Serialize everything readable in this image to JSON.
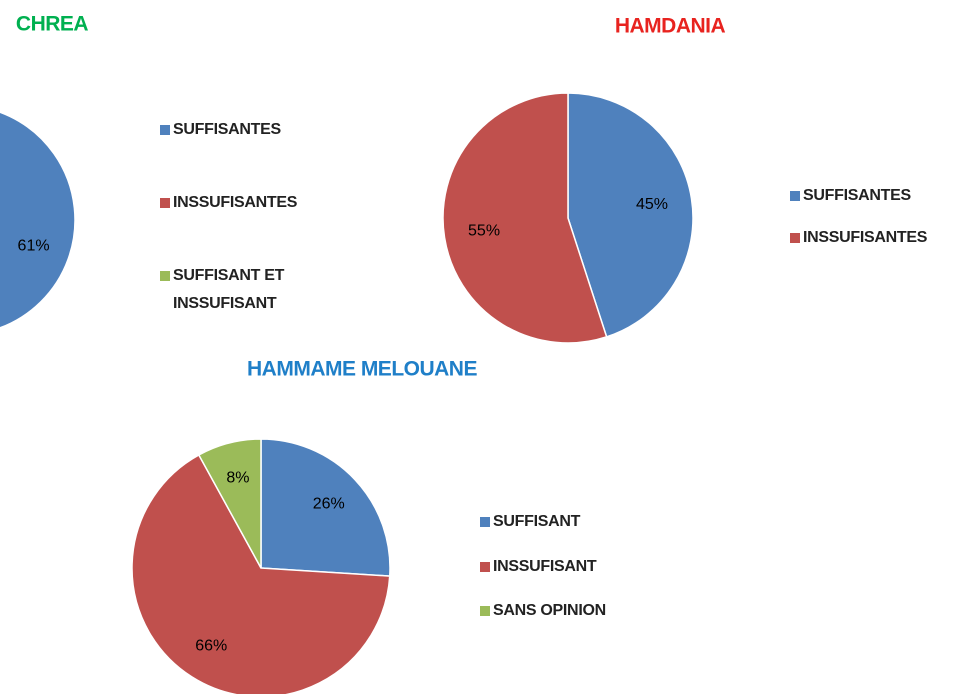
{
  "chart_data": [
    {
      "type": "pie",
      "title": "CHREA",
      "categories": [
        "SUFFISANTES",
        "INSSUFISANTES",
        "SUFFISANT ET INSSUFISANT"
      ],
      "values": [
        61,
        null,
        null
      ],
      "value_labels": [
        "61%",
        null,
        null
      ],
      "colors": [
        "#4f81bd",
        "#c0504d",
        "#9bbb59"
      ]
    },
    {
      "type": "pie",
      "title": "HAMDANIA",
      "categories": [
        "SUFFISANTES",
        "INSSUFISANTES"
      ],
      "values": [
        45,
        55
      ],
      "value_labels": [
        "45%",
        "55%"
      ],
      "colors": [
        "#4f81bd",
        "#c0504d"
      ]
    },
    {
      "type": "pie",
      "title": "HAMMAME MELOUANE",
      "categories": [
        "SUFFISANT",
        "INSSUFISANT",
        "SANS OPINION"
      ],
      "values": [
        26,
        66,
        8
      ],
      "value_labels": [
        "26%",
        "66%",
        "8%"
      ],
      "colors": [
        "#4f81bd",
        "#c0504d",
        "#9bbb59"
      ]
    }
  ]
}
